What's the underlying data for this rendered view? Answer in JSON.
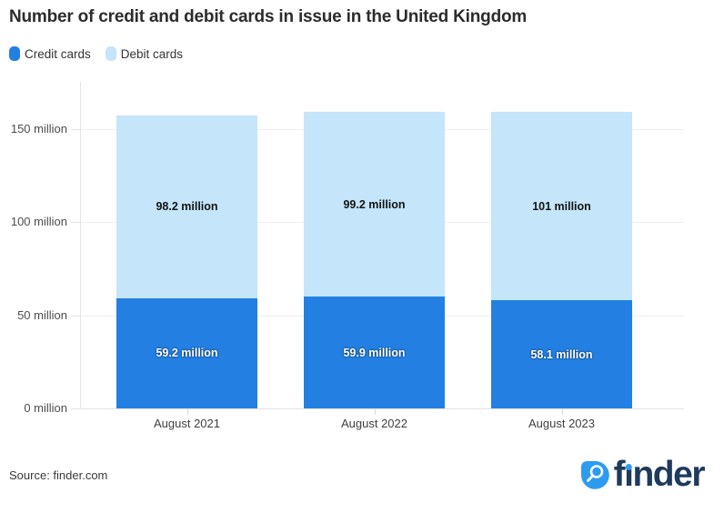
{
  "title": "Number of credit and debit cards in issue in the United Kingdom",
  "chart_data": {
    "type": "bar",
    "stacked": true,
    "title": "Number of credit and debit cards in issue in the United Kingdom",
    "categories": [
      "August 2021",
      "August 2022",
      "August 2023"
    ],
    "series": [
      {
        "name": "Credit cards",
        "color": "#2380E2",
        "label_style": "light",
        "values": [
          59.2,
          59.9,
          58.1
        ],
        "labels": [
          "59.2 million",
          "59.9 million",
          "58.1 million"
        ]
      },
      {
        "name": "Debit cards",
        "color": "#C4E5FA",
        "label_style": "dark",
        "values": [
          98.2,
          99.2,
          101
        ],
        "labels": [
          "98.2 million",
          "99.2 million",
          "101 million"
        ]
      }
    ],
    "xlabel": "",
    "ylabel": "",
    "ylim": [
      0,
      150
    ],
    "yticks": [
      {
        "value": 0,
        "label": "0 million"
      },
      {
        "value": 50,
        "label": "50 million"
      },
      {
        "value": 100,
        "label": "100 million"
      },
      {
        "value": 150,
        "label": "150 million"
      }
    ],
    "grid": true,
    "legend_position": "top-left"
  },
  "footer": {
    "source": "Source: finder.com",
    "logo_text": "finder"
  },
  "colors": {
    "credit": "#2380E2",
    "debit": "#C4E5FA",
    "logo_icon": "#2E9BF0",
    "logo_text": "#1E3A5C",
    "logo_dot": "#2E9BF0",
    "title_text": "#2C2C2C"
  }
}
